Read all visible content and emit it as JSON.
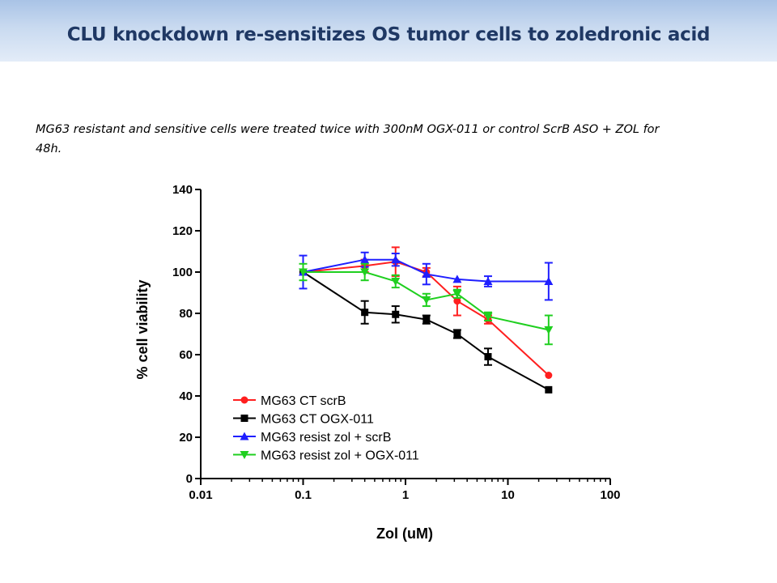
{
  "slide": {
    "title": "CLU knockdown re-sensitizes OS tumor cells to zoledronic acid",
    "subtitle": "MG63 resistant and sensitive cells were treated twice with 300nM OGX-011 or control ScrB ASO + ZOL for 48h.",
    "colors": {
      "title": "#1f3864",
      "header_gradient_top": "#a9c3e6",
      "header_gradient_bottom": "#e3ecf8"
    }
  },
  "chart_data": {
    "type": "line",
    "xlabel": "Zol (uM)",
    "ylabel": "% cell viability",
    "xscale": "log",
    "xlim": [
      0.01,
      100
    ],
    "ylim": [
      0,
      140
    ],
    "xticks": [
      0.01,
      0.1,
      1,
      10,
      100
    ],
    "xtick_labels": [
      "0.01",
      "0.1",
      "1",
      "10",
      "100"
    ],
    "yticks": [
      0,
      20,
      40,
      60,
      80,
      100,
      120,
      140
    ],
    "ytick_labels": [
      "0",
      "20",
      "40",
      "60",
      "80",
      "100",
      "120",
      "140"
    ],
    "grid": false,
    "legend_position": "bottom-left inside plot",
    "x": [
      0.1,
      0.4,
      0.8,
      1.6,
      3.2,
      6.4,
      25
    ],
    "series": [
      {
        "name": "MG63 CT scrB",
        "color": "#ff1f1f",
        "marker": "circle",
        "values": [
          100,
          103,
          105,
          100,
          86,
          77,
          50
        ],
        "errors": [
          0,
          3,
          7,
          2,
          7,
          2,
          0
        ]
      },
      {
        "name": "MG63 CT OGX-011",
        "color": "#000000",
        "marker": "square",
        "values": [
          100,
          80.5,
          79.5,
          77,
          70,
          59,
          43
        ],
        "errors": [
          0,
          5.5,
          4,
          2,
          2,
          4,
          0
        ]
      },
      {
        "name": "MG63 resist zol + scrB",
        "color": "#1f1fff",
        "marker": "triangle-up",
        "values": [
          100,
          106,
          106,
          99,
          96.5,
          95.5,
          95.5
        ],
        "errors": [
          8,
          3.5,
          3,
          5,
          0,
          2.5,
          9
        ]
      },
      {
        "name": "MG63 resist zol + OGX-011",
        "color": "#1fcf1f",
        "marker": "triangle-down",
        "values": [
          100,
          100,
          95.5,
          86.5,
          89.5,
          78.5,
          72
        ],
        "errors": [
          4,
          4,
          3,
          3,
          2,
          2,
          7
        ]
      }
    ]
  }
}
